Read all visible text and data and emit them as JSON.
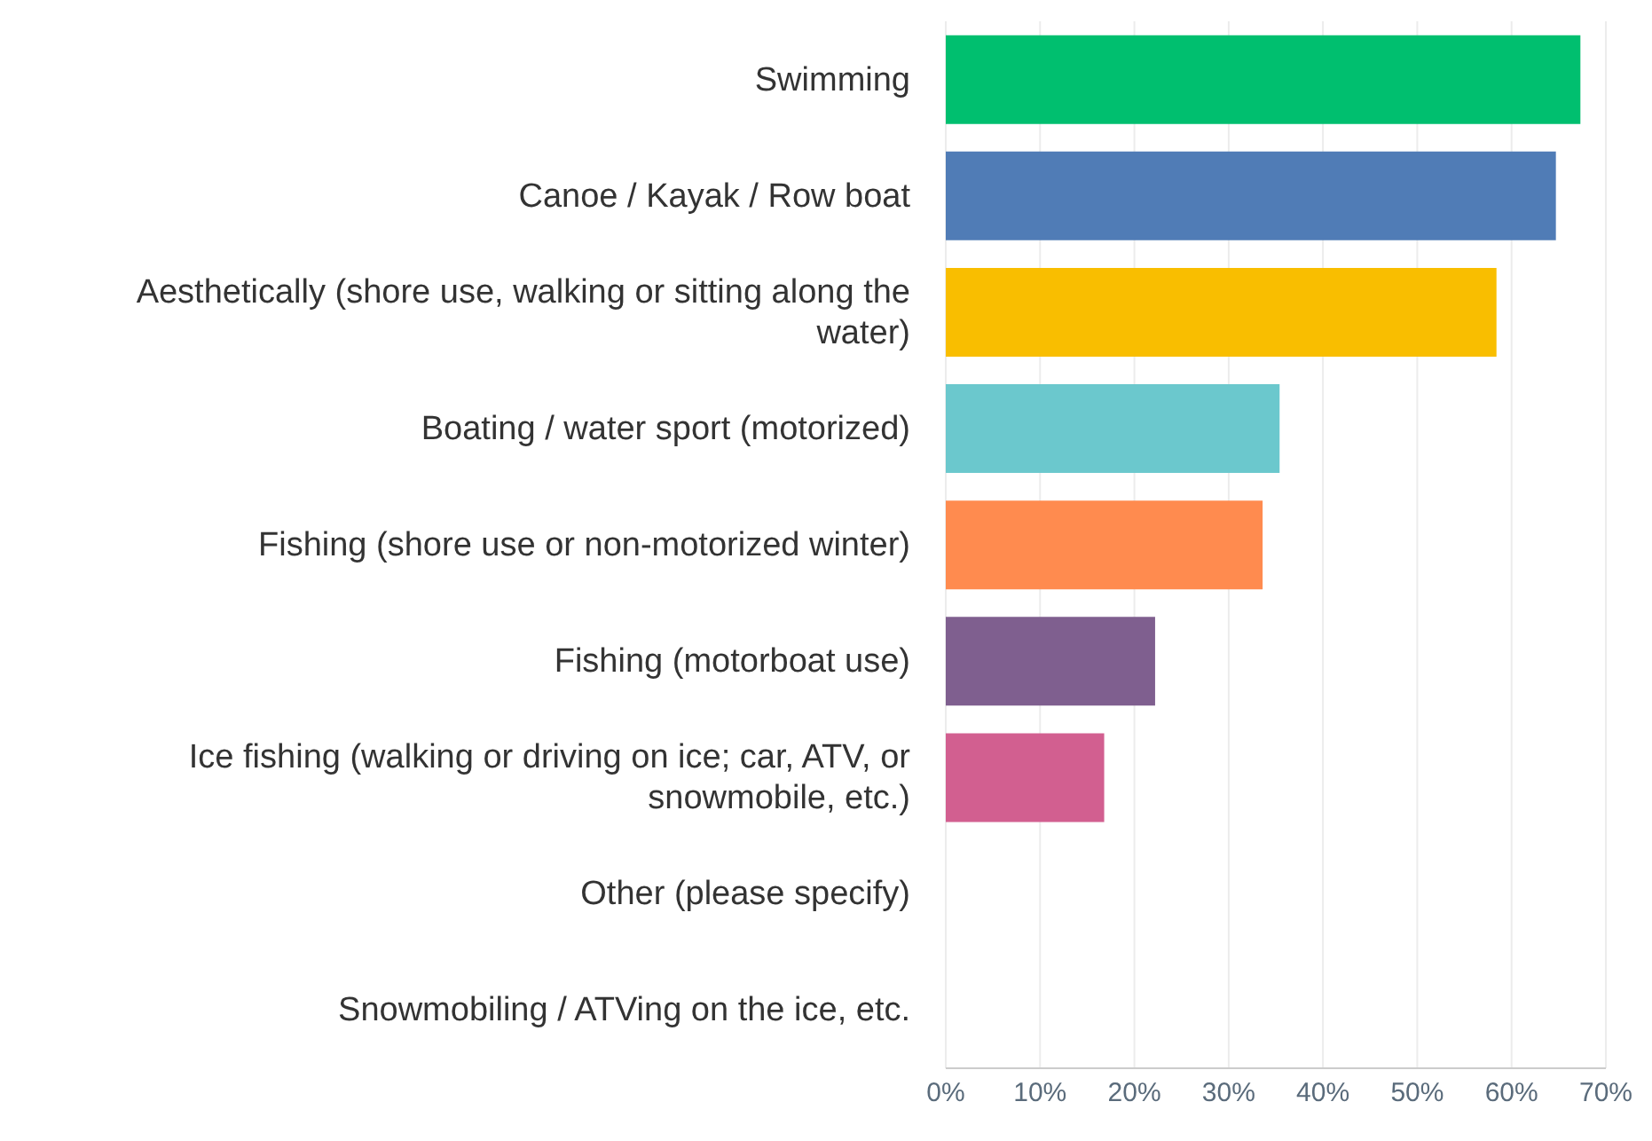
{
  "chart_data": {
    "type": "bar",
    "orientation": "horizontal",
    "categories": [
      "Swimming",
      "Canoe / Kayak / Row boat",
      "Aesthetically (shore use, walking or sitting along the water)",
      "Boating / water sport (motorized)",
      "Fishing (shore use or non-motorized winter)",
      "Fishing (motorboat use)",
      "Ice fishing (walking or driving on ice; car, ATV, or snowmobile, etc.)",
      "Other (please specify)",
      "Snowmobiling / ATVing on the ice, etc."
    ],
    "values": [
      67.3,
      64.7,
      58.4,
      35.4,
      33.6,
      22.2,
      16.8,
      0,
      0
    ],
    "colors": [
      "#00bf6f",
      "#507cb6",
      "#f9be00",
      "#6bc8cd",
      "#ff8b4f",
      "#7f5f8f",
      "#d25f90",
      "#a0a0a0",
      "#a0a0a0"
    ],
    "xlim": [
      0,
      70
    ],
    "xticks": [
      {
        "value": 0,
        "label": "0%"
      },
      {
        "value": 10,
        "label": "10%"
      },
      {
        "value": 20,
        "label": "20%"
      },
      {
        "value": 30,
        "label": "30%"
      },
      {
        "value": 40,
        "label": "40%"
      },
      {
        "value": 50,
        "label": "50%"
      },
      {
        "value": 60,
        "label": "60%"
      },
      {
        "value": 70,
        "label": "70%"
      }
    ],
    "grid": "x"
  }
}
